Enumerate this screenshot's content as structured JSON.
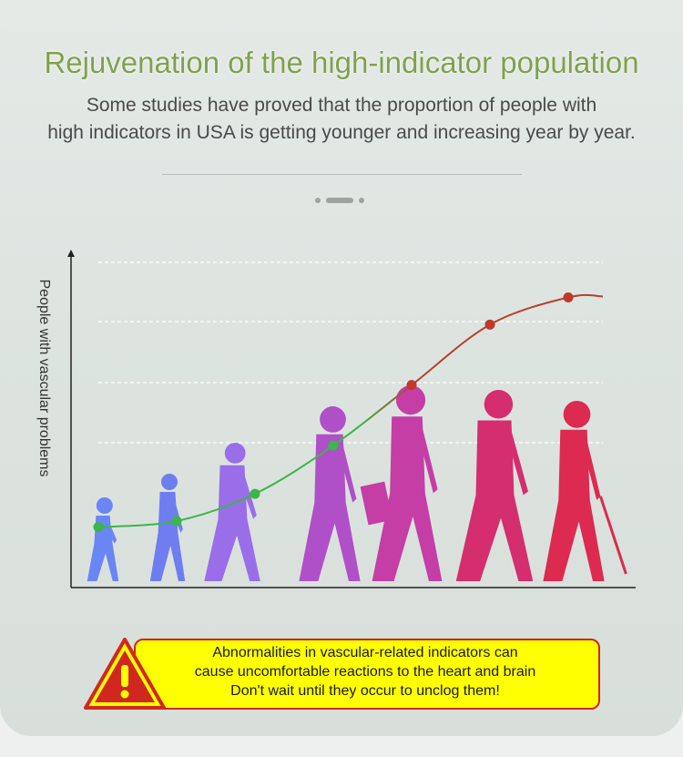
{
  "title": "Rejuvenation of the high-indicator population",
  "subtitle": [
    "Some studies have proved that the proportion of people with",
    "high indicators in USA is getting younger and increasing year by year."
  ],
  "chart_data": {
    "type": "line",
    "ylabel": "People with vascular problems",
    "xlabel": "",
    "grid": true,
    "x": [
      1,
      2,
      3,
      4,
      5,
      6,
      7
    ],
    "values": [
      20,
      22,
      31,
      47,
      67,
      87,
      96
    ],
    "ylim": [
      0,
      110
    ],
    "segment_colors": [
      "#3cb54a",
      "#3cb54a",
      "#3cb54a",
      "#3cb54a",
      "#c0392b",
      "#c0392b",
      "#c0392b"
    ],
    "figures": [
      "toddler",
      "child",
      "school-kid",
      "teenager",
      "adult",
      "middle-aged",
      "elderly"
    ],
    "figure_colors": [
      "#6a86f4",
      "#6e7ef1",
      "#9a6ee8",
      "#b050c8",
      "#c43ea6",
      "#d42e6e",
      "#dc2a50"
    ]
  },
  "warning": {
    "lines": [
      "Abnormalities in vascular-related indicators can",
      "cause uncomfortable reactions to the heart and brain",
      "Don't wait until they occur to unclog them!"
    ],
    "icon": "warning-triangle-icon",
    "box_color": "#ffff00",
    "border_color": "#d0281e"
  }
}
